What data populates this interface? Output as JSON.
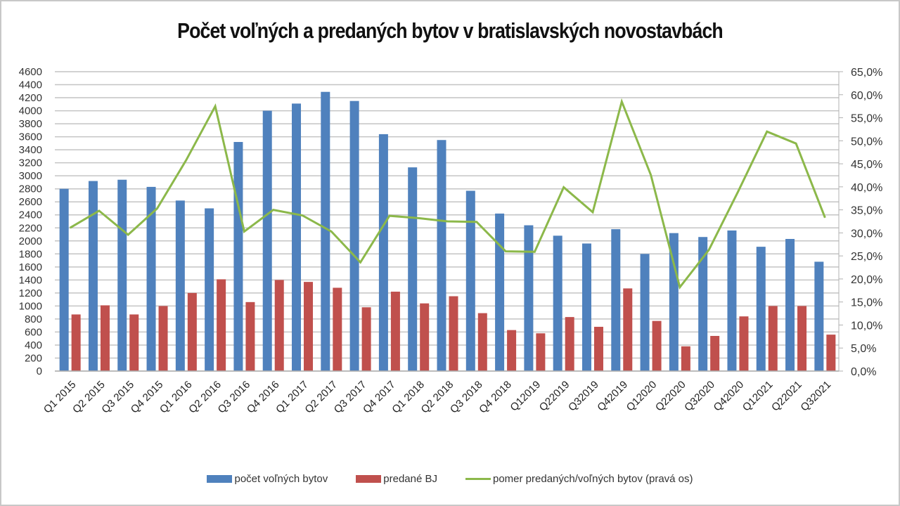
{
  "chart_data": {
    "type": "bar",
    "title": "Počet voľných a predaných bytov v bratislavských novostavbách",
    "xlabel": "",
    "ylabel": "",
    "ylim": [
      0,
      4600
    ],
    "y2lim": [
      0,
      65
    ],
    "grid": true,
    "legend_position": "bottom",
    "categories": [
      "Q1 2015",
      "Q2 2015",
      "Q3 2015",
      "Q4 2015",
      "Q1 2016",
      "Q2 2016",
      "Q3 2016",
      "Q4 2016",
      "Q1 2017",
      "Q2 2017",
      "Q3 2017",
      "Q4 2017",
      "Q1 2018",
      "Q2 2018",
      "Q3 2018",
      "Q4 2018",
      "Q12019",
      "Q22019",
      "Q32019",
      "Q42019",
      "Q12020",
      "Q22020",
      "Q32020",
      "Q42020",
      "Q12021",
      "Q22021",
      "Q32021"
    ],
    "series": [
      {
        "name": "počet voľných bytov",
        "type": "bar",
        "axis": "left",
        "color": "#4f81bd",
        "values": [
          2800,
          2920,
          2940,
          2830,
          2620,
          2500,
          3520,
          4000,
          4110,
          4290,
          4150,
          3640,
          3130,
          3550,
          2770,
          2420,
          2240,
          2080,
          1960,
          2180,
          1800,
          2120,
          2060,
          2160,
          1910,
          2030,
          1680
        ]
      },
      {
        "name": "predané BJ",
        "type": "bar",
        "axis": "left",
        "color": "#c0504d",
        "values": [
          870,
          1010,
          870,
          1000,
          1200,
          1410,
          1060,
          1400,
          1370,
          1280,
          980,
          1220,
          1040,
          1150,
          890,
          630,
          580,
          830,
          680,
          1270,
          770,
          380,
          540,
          840,
          1000,
          1000,
          560
        ]
      },
      {
        "name": "pomer predaných/voľných bytov (pravá os)",
        "type": "line",
        "axis": "right",
        "color": "#8cb84a",
        "values": [
          31.1,
          34.8,
          29.6,
          35.3,
          45.8,
          57.5,
          30.3,
          35.0,
          33.8,
          30.3,
          23.6,
          33.7,
          33.2,
          32.5,
          32.4,
          26.0,
          25.9,
          39.9,
          34.5,
          58.5,
          42.6,
          18.2,
          26.3,
          38.9,
          52.0,
          49.4,
          33.3
        ]
      }
    ],
    "left_ticks": [
      "0",
      "200",
      "400",
      "600",
      "800",
      "1000",
      "1200",
      "1400",
      "1600",
      "1800",
      "2000",
      "2200",
      "2400",
      "2600",
      "2800",
      "3000",
      "3200",
      "3400",
      "3600",
      "3800",
      "4000",
      "4200",
      "4400",
      "4600"
    ],
    "right_ticks": [
      "0,0%",
      "5,0%",
      "10,0%",
      "15,0%",
      "20,0%",
      "25,0%",
      "30,0%",
      "35,0%",
      "40,0%",
      "45,0%",
      "50,0%",
      "55,0%",
      "60,0%",
      "65,0%"
    ]
  },
  "legend": [
    {
      "label": "počet voľných bytov",
      "color": "#4f81bd",
      "kind": "bar"
    },
    {
      "label": "predané BJ",
      "color": "#c0504d",
      "kind": "bar"
    },
    {
      "label": "pomer predaných/voľných bytov (pravá os)",
      "color": "#8cb84a",
      "kind": "line"
    }
  ]
}
